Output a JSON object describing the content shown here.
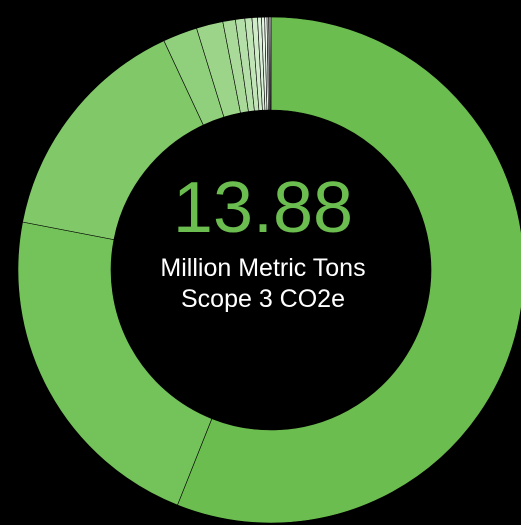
{
  "chart_data": {
    "type": "pie",
    "subtype": "donut",
    "title": "",
    "center_value": "13.88",
    "center_caption": "Million Metric Tons Scope 3 CO2e",
    "values": [
      56.0,
      22.0,
      15.0,
      2.2,
      1.7,
      0.8,
      0.6,
      0.45,
      0.35,
      0.25,
      0.2,
      0.15,
      0.1,
      0.08,
      0.07
    ],
    "colors": [
      "#6cbd4f",
      "#74c35a",
      "#80c868",
      "#90cf7b",
      "#9cd48a",
      "#a9da99",
      "#b5dfa8",
      "#c2e5b8",
      "#cfebc8",
      "#dbf0d8",
      "#e6f5e3",
      "#eef8ec",
      "#f4fbf3",
      "#f9fdf8",
      "#ffffff"
    ],
    "value_color": "#6cbd4f",
    "background": "#000000",
    "separator_color": "#000000"
  }
}
